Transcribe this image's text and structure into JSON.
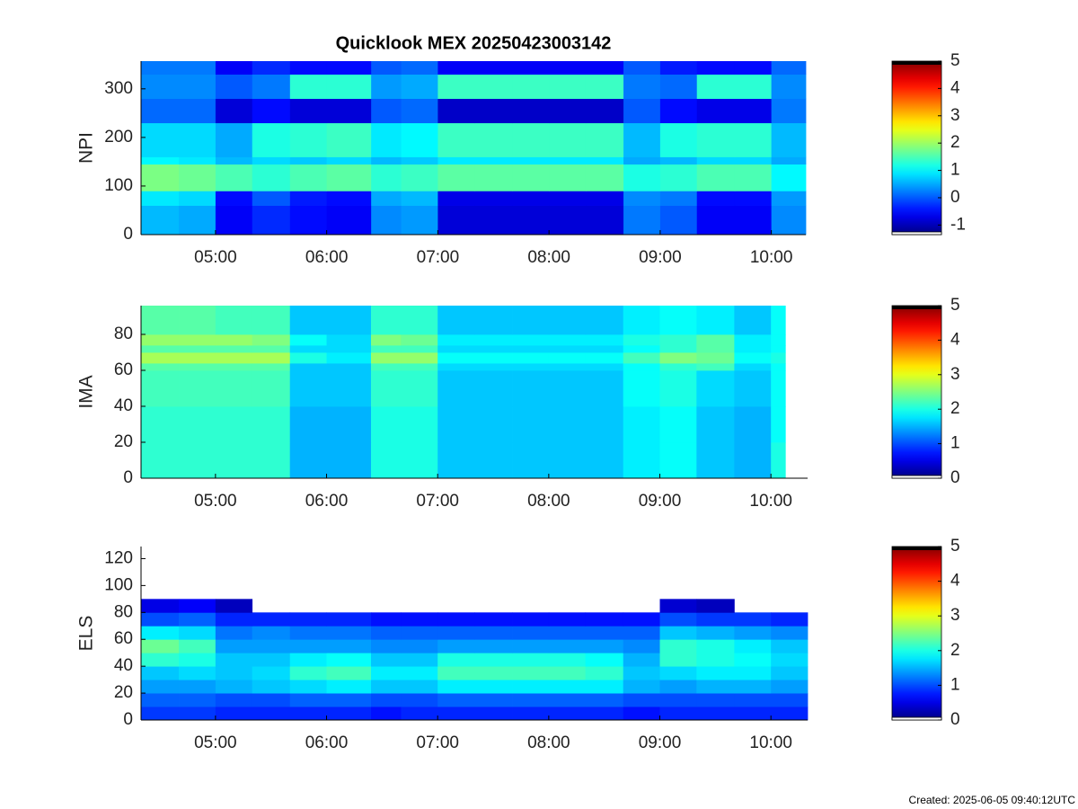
{
  "chart_data": [
    {
      "type": "heatmap",
      "title": "Quicklook MEX 20250423003142",
      "ylabel": "NPI",
      "colormap": "jet",
      "xbins": [
        4.33,
        4.67,
        5.0,
        5.33,
        5.67,
        6.0,
        6.4,
        6.67,
        7.0,
        7.33,
        7.67,
        8.0,
        8.33,
        8.67,
        9.0,
        9.33,
        9.67,
        10.0,
        10.31
      ],
      "ybins": [
        0,
        60,
        90,
        145,
        160,
        230,
        280,
        330,
        357
      ],
      "z": [
        [
          0.6,
          0.5,
          -0.6,
          -0.3,
          -0.5,
          -0.6,
          0.3,
          0.4,
          -0.8,
          -0.8,
          -0.8,
          -0.8,
          -0.8,
          0.2,
          0.0,
          -0.6,
          -0.6,
          0.3
        ],
        [
          0.9,
          0.8,
          -0.5,
          0.0,
          -0.4,
          -0.5,
          0.5,
          0.6,
          -0.7,
          -0.7,
          -0.7,
          -0.7,
          -0.7,
          0.3,
          0.2,
          -0.5,
          -0.5,
          0.4
        ],
        [
          1.8,
          1.7,
          1.5,
          1.3,
          1.5,
          1.6,
          1.3,
          1.4,
          1.6,
          1.6,
          1.6,
          1.6,
          1.6,
          1.2,
          1.3,
          1.5,
          1.5,
          1.0
        ],
        [
          1.0,
          0.9,
          0.6,
          0.8,
          0.7,
          0.8,
          0.6,
          0.7,
          0.9,
          0.9,
          0.9,
          0.9,
          0.9,
          0.5,
          0.6,
          0.8,
          0.8,
          0.5
        ],
        [
          0.8,
          0.8,
          0.5,
          1.2,
          1.3,
          1.4,
          0.9,
          1.0,
          1.4,
          1.4,
          1.4,
          1.4,
          1.4,
          0.6,
          1.2,
          1.3,
          1.3,
          0.6
        ],
        [
          0.1,
          0.1,
          -0.8,
          -0.5,
          -0.8,
          -0.8,
          0.0,
          0.1,
          -0.9,
          -0.9,
          -0.9,
          -0.9,
          -0.9,
          0.0,
          -0.5,
          -0.7,
          -0.7,
          0.2
        ],
        [
          0.3,
          0.3,
          0.0,
          0.2,
          1.3,
          1.3,
          0.4,
          0.5,
          1.4,
          1.4,
          1.4,
          1.4,
          1.4,
          0.2,
          0.1,
          1.3,
          1.3,
          0.3
        ],
        [
          0.2,
          0.2,
          -0.6,
          -0.3,
          -0.5,
          -0.5,
          0.0,
          0.1,
          -0.6,
          -0.6,
          -0.6,
          -0.6,
          -0.6,
          0.0,
          -0.4,
          -0.5,
          -0.5,
          0.1
        ]
      ],
      "xlim": [
        4.33,
        10.31
      ],
      "xticks": [
        {
          "value": 5,
          "label": "05:00"
        },
        {
          "value": 6,
          "label": "06:00"
        },
        {
          "value": 7,
          "label": "07:00"
        },
        {
          "value": 8,
          "label": "08:00"
        },
        {
          "value": 9,
          "label": "09:00"
        },
        {
          "value": 10,
          "label": "10:00"
        }
      ],
      "ylim": [
        0,
        357
      ],
      "yticks": [
        0,
        100,
        200,
        300
      ],
      "clim": [
        -1.35,
        5
      ],
      "cticks": [
        -1,
        0,
        1,
        2,
        3,
        4,
        5
      ]
    },
    {
      "type": "heatmap",
      "ylabel": "IMA",
      "colormap": "jet",
      "xbins": [
        4.33,
        4.67,
        5.0,
        5.33,
        5.67,
        6.0,
        6.4,
        6.67,
        7.0,
        7.33,
        7.67,
        8.0,
        8.33,
        8.67,
        9.0,
        9.33,
        9.67,
        10.0,
        10.13
      ],
      "ybins": [
        0,
        20,
        40,
        60,
        64,
        70,
        74,
        80,
        96
      ],
      "z": [
        [
          2.1,
          2.1,
          2.1,
          2.1,
          1.5,
          1.5,
          2.0,
          2.0,
          1.6,
          1.6,
          1.6,
          1.6,
          1.6,
          1.8,
          1.9,
          1.6,
          1.5,
          2.0
        ],
        [
          2.1,
          2.1,
          2.1,
          2.1,
          1.5,
          1.5,
          2.0,
          2.0,
          1.6,
          1.6,
          1.6,
          1.6,
          1.6,
          1.8,
          1.9,
          1.6,
          1.5,
          1.9
        ],
        [
          2.2,
          2.2,
          2.2,
          2.2,
          1.6,
          1.6,
          2.1,
          2.1,
          1.6,
          1.6,
          1.6,
          1.6,
          1.6,
          1.9,
          2.0,
          1.7,
          1.6,
          1.9
        ],
        [
          2.3,
          2.3,
          2.3,
          2.3,
          1.6,
          1.6,
          2.2,
          2.2,
          1.7,
          1.7,
          1.7,
          1.7,
          1.7,
          1.9,
          2.1,
          2.2,
          1.7,
          1.9
        ],
        [
          2.7,
          2.7,
          2.7,
          2.7,
          2.0,
          1.8,
          2.6,
          2.6,
          1.9,
          1.9,
          1.9,
          1.9,
          1.9,
          2.2,
          2.5,
          2.4,
          1.9,
          2.0
        ],
        [
          2.3,
          2.3,
          2.3,
          2.3,
          1.7,
          1.7,
          2.2,
          2.2,
          1.7,
          1.7,
          1.7,
          1.7,
          1.7,
          1.9,
          2.1,
          2.3,
          1.8,
          1.9
        ],
        [
          2.6,
          2.6,
          2.6,
          2.5,
          1.9,
          1.7,
          2.5,
          2.4,
          1.8,
          1.8,
          1.8,
          1.8,
          1.8,
          2.0,
          2.1,
          2.3,
          1.8,
          1.9
        ],
        [
          2.3,
          2.3,
          2.2,
          2.2,
          1.6,
          1.6,
          2.1,
          2.1,
          1.6,
          1.6,
          1.6,
          1.6,
          1.6,
          1.8,
          1.9,
          1.8,
          1.6,
          1.9
        ]
      ],
      "xlim": [
        4.33,
        10.33
      ],
      "xticks": [
        {
          "value": 5,
          "label": "05:00"
        },
        {
          "value": 6,
          "label": "06:00"
        },
        {
          "value": 7,
          "label": "07:00"
        },
        {
          "value": 8,
          "label": "08:00"
        },
        {
          "value": 9,
          "label": "09:00"
        },
        {
          "value": 10,
          "label": "10:00"
        }
      ],
      "ylim": [
        0,
        96
      ],
      "yticks": [
        0,
        20,
        40,
        60,
        80
      ],
      "clim": [
        0,
        5
      ],
      "cticks": [
        0,
        1,
        2,
        3,
        4,
        5
      ]
    },
    {
      "type": "heatmap",
      "ylabel": "ELS",
      "colormap": "jet",
      "xbins": [
        4.33,
        4.67,
        5.0,
        5.33,
        5.67,
        6.0,
        6.4,
        6.67,
        7.0,
        7.33,
        7.67,
        8.0,
        8.33,
        8.67,
        9.0,
        9.33,
        9.67,
        10.0,
        10.33
      ],
      "ybins": [
        0,
        10,
        20,
        30,
        40,
        50,
        60,
        70,
        80,
        90,
        129
      ],
      "z": [
        [
          0.9,
          0.9,
          0.8,
          0.8,
          0.8,
          0.8,
          0.7,
          0.8,
          0.8,
          0.8,
          0.8,
          0.8,
          0.8,
          0.7,
          0.8,
          0.8,
          0.8,
          0.8
        ],
        [
          1.1,
          1.1,
          1.0,
          1.0,
          1.1,
          1.1,
          1.0,
          1.0,
          1.1,
          1.1,
          1.1,
          1.1,
          1.1,
          1.0,
          1.0,
          1.0,
          1.0,
          1.0
        ],
        [
          1.4,
          1.4,
          1.5,
          1.6,
          1.7,
          1.8,
          1.6,
          1.6,
          1.8,
          1.8,
          1.8,
          1.8,
          1.8,
          1.5,
          1.4,
          1.5,
          1.5,
          1.4
        ],
        [
          1.6,
          1.7,
          1.6,
          1.7,
          2.1,
          2.2,
          1.8,
          1.8,
          2.2,
          2.2,
          2.2,
          2.2,
          2.1,
          1.6,
          1.7,
          1.8,
          1.8,
          1.6
        ],
        [
          2.1,
          2.0,
          1.6,
          1.6,
          1.8,
          1.9,
          1.6,
          1.6,
          2.0,
          2.0,
          2.0,
          2.0,
          1.9,
          1.5,
          2.1,
          2.0,
          1.9,
          1.7
        ],
        [
          2.4,
          2.2,
          1.4,
          1.4,
          1.4,
          1.4,
          1.3,
          1.3,
          1.4,
          1.4,
          1.4,
          1.4,
          1.4,
          1.3,
          2.1,
          2.0,
          1.8,
          1.6
        ],
        [
          1.8,
          1.7,
          1.2,
          1.3,
          1.2,
          1.2,
          1.1,
          1.1,
          1.1,
          1.1,
          1.1,
          1.1,
          1.1,
          1.1,
          1.6,
          1.5,
          1.4,
          1.3
        ],
        [
          1.0,
          1.1,
          0.8,
          0.8,
          0.8,
          0.8,
          0.7,
          0.7,
          0.7,
          0.7,
          0.7,
          0.7,
          0.7,
          0.7,
          1.0,
          0.9,
          0.9,
          0.8
        ],
        [
          0.5,
          0.6,
          0.3,
          null,
          null,
          null,
          null,
          null,
          null,
          null,
          null,
          null,
          null,
          null,
          0.4,
          0.3,
          null,
          null
        ],
        [
          null,
          null,
          null,
          null,
          null,
          null,
          null,
          null,
          null,
          null,
          null,
          null,
          null,
          null,
          null,
          null,
          null,
          null
        ]
      ],
      "xlim": [
        4.33,
        10.33
      ],
      "xticks": [
        {
          "value": 5,
          "label": "05:00"
        },
        {
          "value": 6,
          "label": "06:00"
        },
        {
          "value": 7,
          "label": "07:00"
        },
        {
          "value": 8,
          "label": "08:00"
        },
        {
          "value": 9,
          "label": "09:00"
        },
        {
          "value": 10,
          "label": "10:00"
        }
      ],
      "ylim": [
        0,
        129
      ],
      "yticks": [
        0,
        20,
        40,
        60,
        80,
        100,
        120
      ],
      "clim": [
        0,
        5
      ],
      "cticks": [
        0,
        1,
        2,
        3,
        4,
        5
      ]
    }
  ],
  "created": "Created: 2025-06-05 09:40:12UTC"
}
